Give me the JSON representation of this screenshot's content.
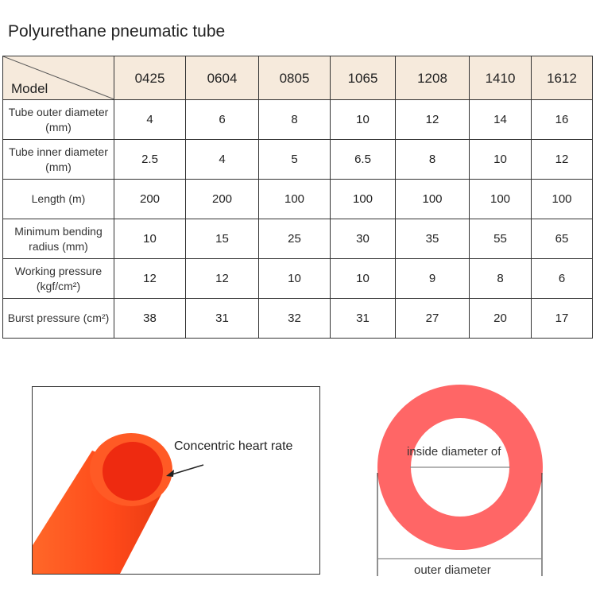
{
  "title": "Polyurethane pneumatic tube",
  "table": {
    "corner_label": "Model",
    "models": [
      "0425",
      "0604",
      "0805",
      "1065",
      "1208",
      "1410",
      "1612"
    ],
    "rows": [
      {
        "label": "Tube outer diameter (mm)",
        "values": [
          "4",
          "6",
          "8",
          "10",
          "12",
          "14",
          "16"
        ]
      },
      {
        "label": "Tube inner diameter (mm)",
        "values": [
          "2.5",
          "4",
          "5",
          "6.5",
          "8",
          "10",
          "12"
        ]
      },
      {
        "label": "Length (m)",
        "values": [
          "200",
          "200",
          "100",
          "100",
          "100",
          "100",
          "100"
        ]
      },
      {
        "label": "Minimum bending radius (mm)",
        "values": [
          "10",
          "15",
          "25",
          "30",
          "35",
          "55",
          "65"
        ]
      },
      {
        "label": "Working pressure (kgf/cm²)",
        "values": [
          "12",
          "12",
          "10",
          "10",
          "9",
          "8",
          "6"
        ]
      },
      {
        "label": "Burst pressure (cm²)",
        "values": [
          "38",
          "31",
          "32",
          "31",
          "27",
          "20",
          "17"
        ]
      }
    ]
  },
  "photo": {
    "annotation": "Concentric heart rate",
    "tube_color": "#ff4a1a"
  },
  "diagram": {
    "inside_label": "inside diameter of",
    "outer_label": "outer diameter",
    "ring_color": "#ff6666"
  }
}
